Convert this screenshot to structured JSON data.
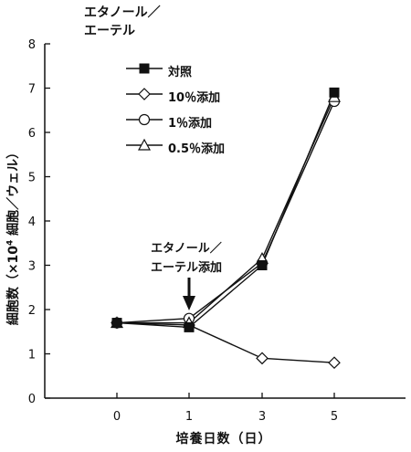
{
  "chart_data": {
    "type": "line",
    "title_lines": [
      "エタノール／",
      "エーテル"
    ],
    "ylabel_prefix": "細胞数（×10",
    "ylabel_sup": "4",
    "ylabel_suffix": " 細胞／ウェル）",
    "xlabel": "培養日数（日）",
    "categories": [
      "0",
      "1",
      "3",
      "5"
    ],
    "ylim": [
      0,
      8
    ],
    "yticks": [
      "0",
      "1",
      "2",
      "3",
      "4",
      "5",
      "6",
      "7",
      "8"
    ],
    "annotation_lines": [
      "エタノール／",
      "エーテル添加"
    ],
    "series": [
      {
        "name": "対照",
        "marker": "square-filled",
        "values": [
          1.7,
          1.6,
          3.0,
          6.9
        ]
      },
      {
        "name": "10％添加",
        "marker": "diamond-open",
        "values": [
          1.7,
          1.65,
          0.9,
          0.8
        ]
      },
      {
        "name": "1％添加",
        "marker": "circle-open",
        "values": [
          1.7,
          1.8,
          3.05,
          6.7
        ]
      },
      {
        "name": "0.5％添加",
        "marker": "triangle-open",
        "values": [
          1.7,
          1.7,
          3.15,
          6.8
        ]
      }
    ],
    "legend_placement": "upper-left",
    "grid": false
  }
}
